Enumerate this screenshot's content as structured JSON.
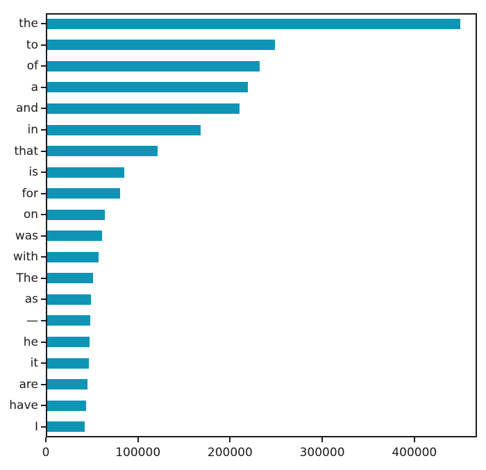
{
  "chart_data": {
    "type": "bar",
    "orientation": "horizontal",
    "title": "",
    "xlabel": "",
    "ylabel": "",
    "categories": [
      "the",
      "to",
      "of",
      "a",
      "and",
      "in",
      "that",
      "is",
      "for",
      "on",
      "was",
      "with",
      "The",
      "as",
      "—",
      "he",
      "it",
      "are",
      "have",
      "I"
    ],
    "values": [
      450000,
      249000,
      232000,
      219500,
      210000,
      168000,
      121000,
      85000,
      80500,
      64000,
      61000,
      57500,
      51000,
      49000,
      48500,
      47500,
      47000,
      45000,
      44000,
      42500
    ],
    "xlim": [
      0,
      468000
    ],
    "xticks": [
      0,
      100000,
      200000,
      300000,
      400000
    ],
    "xtick_labels": [
      "0",
      "100000",
      "200000",
      "300000",
      "400000"
    ],
    "grid": false,
    "legend": false,
    "bar_color": "#0e95b5",
    "axis_color": "#1c1c1c",
    "text_color": "#1a1a1a",
    "background_color": "#ffffff"
  }
}
